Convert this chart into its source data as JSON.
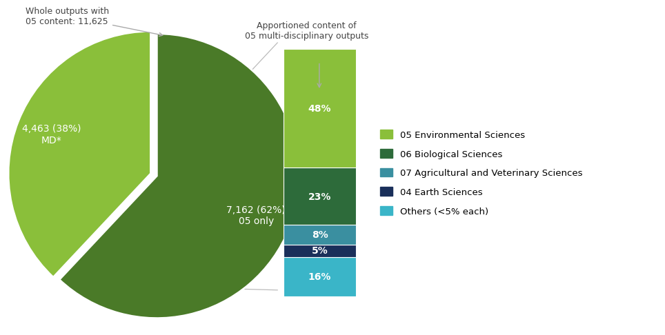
{
  "pie_values": [
    62,
    38
  ],
  "pie_colors": [
    "#4a7a28",
    "#8abf3a"
  ],
  "pie_labels": [
    "7,162 (62%)\n05 only",
    "4,463 (38%)\nMD*"
  ],
  "pie_explode": [
    0,
    0.06
  ],
  "bar_values": [
    48,
    23,
    8,
    5,
    16
  ],
  "bar_colors": [
    "#8abf3a",
    "#2d6b3a",
    "#3a8fa0",
    "#1a2f5a",
    "#3ab5c8"
  ],
  "bar_labels": [
    "48%",
    "23%",
    "8%",
    "5%",
    "16%"
  ],
  "legend_labels": [
    "05 Environmental Sciences",
    "06 Biological Sciences",
    "07 Agricultural and Veterinary Sciences",
    "04 Earth Sciences",
    "Others (<5% each)"
  ],
  "legend_colors": [
    "#8abf3a",
    "#2d6b3a",
    "#3a8fa0",
    "#1a2f5a",
    "#3ab5c8"
  ],
  "annotation_pie": "Whole outputs with\n05 content: 11,625",
  "annotation_bar": "Apportioned content of\n05 multi-disciplinary outputs",
  "bg_color": "#ffffff",
  "text_color": "#444444",
  "label_fontsize": 9.5,
  "pie_label_fontsize": 10,
  "bar_label_fontsize": 10,
  "annotation_fontsize": 9
}
